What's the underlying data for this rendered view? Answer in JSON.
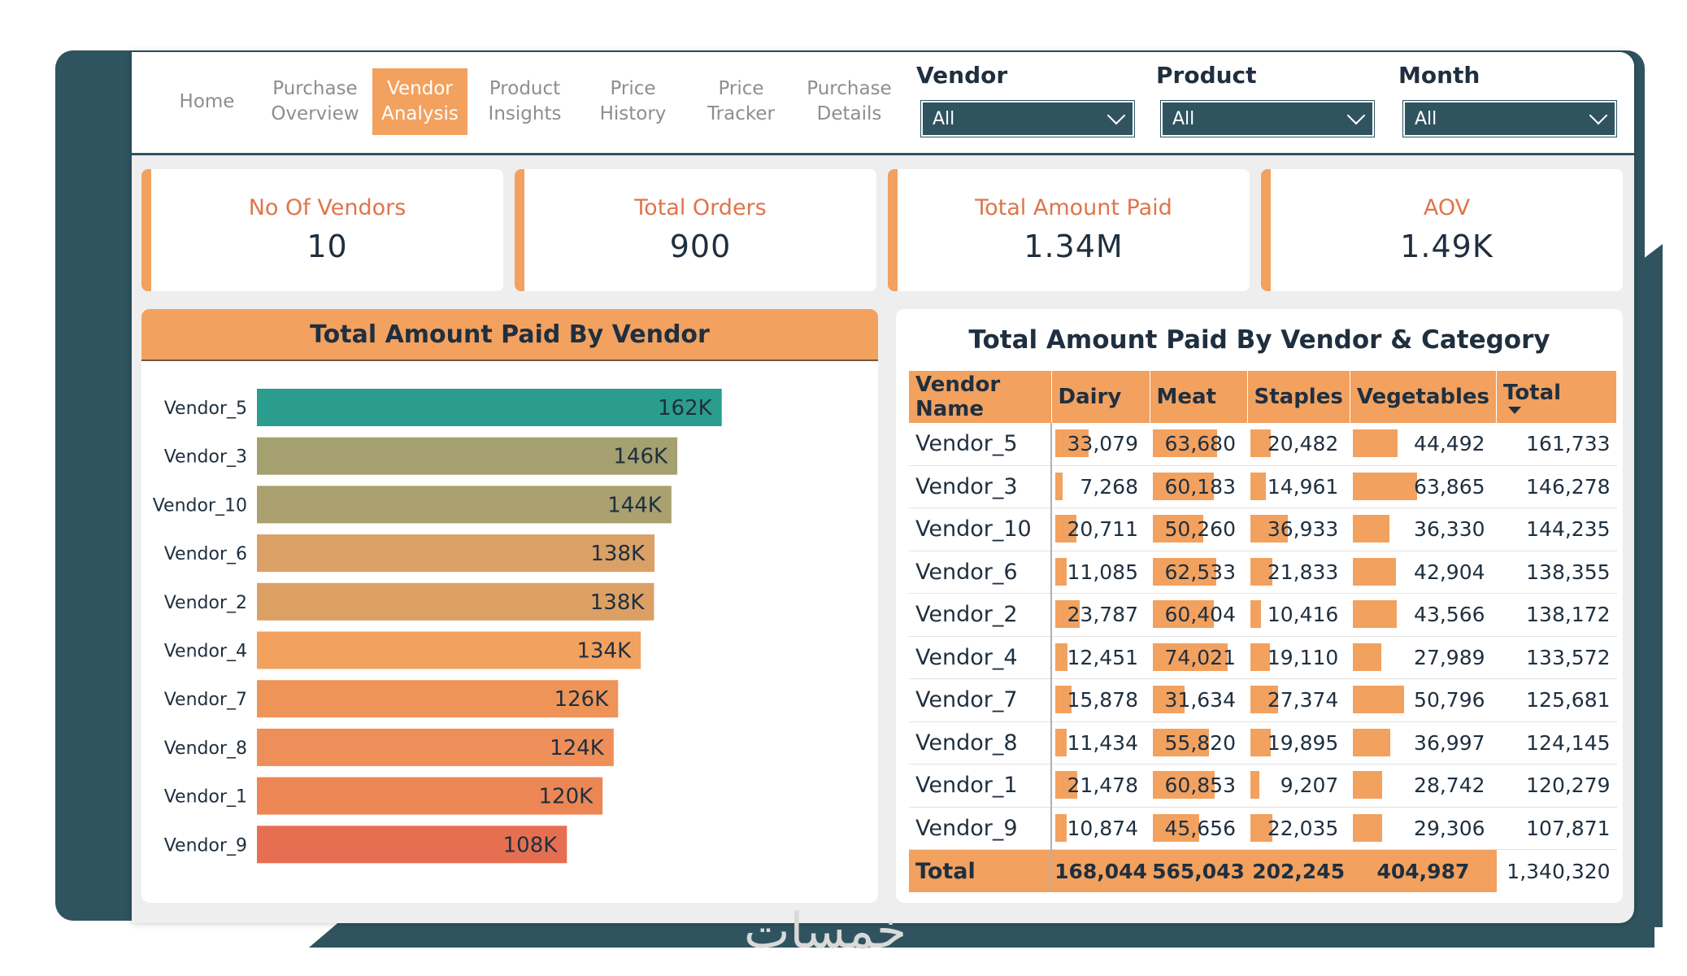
{
  "nav": {
    "items": [
      {
        "label": "Home",
        "active": false
      },
      {
        "label": "Purchase\nOverview",
        "active": false
      },
      {
        "label": "Vendor\nAnalysis",
        "active": true
      },
      {
        "label": "Product\nInsights",
        "active": false
      },
      {
        "label": "Price\nHistory",
        "active": false
      },
      {
        "label": "Price\nTracker",
        "active": false
      },
      {
        "label": "Purchase\nDetails",
        "active": false
      }
    ]
  },
  "filters": {
    "vendor": {
      "label": "Vendor",
      "value": "All"
    },
    "product": {
      "label": "Product",
      "value": "All"
    },
    "month": {
      "label": "Month",
      "value": "All"
    }
  },
  "kpis": [
    {
      "label": "No Of Vendors",
      "value": "10"
    },
    {
      "label": "Total Orders",
      "value": "900"
    },
    {
      "label": "Total Amount Paid",
      "value": "1.34M"
    },
    {
      "label": "AOV",
      "value": "1.49K"
    }
  ],
  "bar_chart": {
    "title": "Total Amount Paid By Vendor"
  },
  "matrix": {
    "title": "Total Amount Paid By Vendor & Category",
    "headers": [
      "Vendor Name",
      "Dairy",
      "Meat",
      "Staples",
      "Vegetables",
      "Total"
    ],
    "rows": [
      {
        "name": "Vendor_5",
        "values": [
          "33,079",
          "63,680",
          "20,482",
          "44,492"
        ],
        "total": "161,733"
      },
      {
        "name": "Vendor_3",
        "values": [
          "7,268",
          "60,183",
          "14,961",
          "63,865"
        ],
        "total": "146,278"
      },
      {
        "name": "Vendor_10",
        "values": [
          "20,711",
          "50,260",
          "36,933",
          "36,330"
        ],
        "total": "144,235"
      },
      {
        "name": "Vendor_6",
        "values": [
          "11,085",
          "62,533",
          "21,833",
          "42,904"
        ],
        "total": "138,355"
      },
      {
        "name": "Vendor_2",
        "values": [
          "23,787",
          "60,404",
          "10,416",
          "43,566"
        ],
        "total": "138,172"
      },
      {
        "name": "Vendor_4",
        "values": [
          "12,451",
          "74,021",
          "19,110",
          "27,989"
        ],
        "total": "133,572"
      },
      {
        "name": "Vendor_7",
        "values": [
          "15,878",
          "31,634",
          "27,374",
          "50,796"
        ],
        "total": "125,681"
      },
      {
        "name": "Vendor_8",
        "values": [
          "11,434",
          "55,820",
          "19,895",
          "36,997"
        ],
        "total": "124,145"
      },
      {
        "name": "Vendor_1",
        "values": [
          "21,478",
          "60,853",
          "9,207",
          "28,742"
        ],
        "total": "120,279"
      },
      {
        "name": "Vendor_9",
        "values": [
          "10,874",
          "45,656",
          "22,035",
          "29,306"
        ],
        "total": "107,871"
      }
    ],
    "totals": {
      "label": "Total",
      "values": [
        "168,044",
        "565,043",
        "202,245",
        "404,987"
      ],
      "total": "1,340,320"
    },
    "bar_color": "#f2a15f"
  },
  "watermark": "خمسات",
  "chart_data": {
    "type": "bar",
    "orientation": "horizontal",
    "title": "Total Amount Paid By Vendor",
    "categories": [
      "Vendor_5",
      "Vendor_3",
      "Vendor_10",
      "Vendor_6",
      "Vendor_2",
      "Vendor_4",
      "Vendor_7",
      "Vendor_8",
      "Vendor_1",
      "Vendor_9"
    ],
    "values": [
      161733,
      146278,
      144235,
      138355,
      138172,
      133572,
      125681,
      124145,
      120279,
      107871
    ],
    "data_labels": [
      "162K",
      "146K",
      "144K",
      "138K",
      "138K",
      "134K",
      "126K",
      "124K",
      "120K",
      "108K"
    ],
    "colors": [
      "#2a9d8f",
      "#a5a070",
      "#aaa070",
      "#daa066",
      "#dca065",
      "#f2a15f",
      "#ee9459",
      "#ee8e58",
      "#ec8655",
      "#e76f51"
    ],
    "xlim": [
      0,
      215000
    ],
    "grid": false,
    "legend": "none"
  }
}
